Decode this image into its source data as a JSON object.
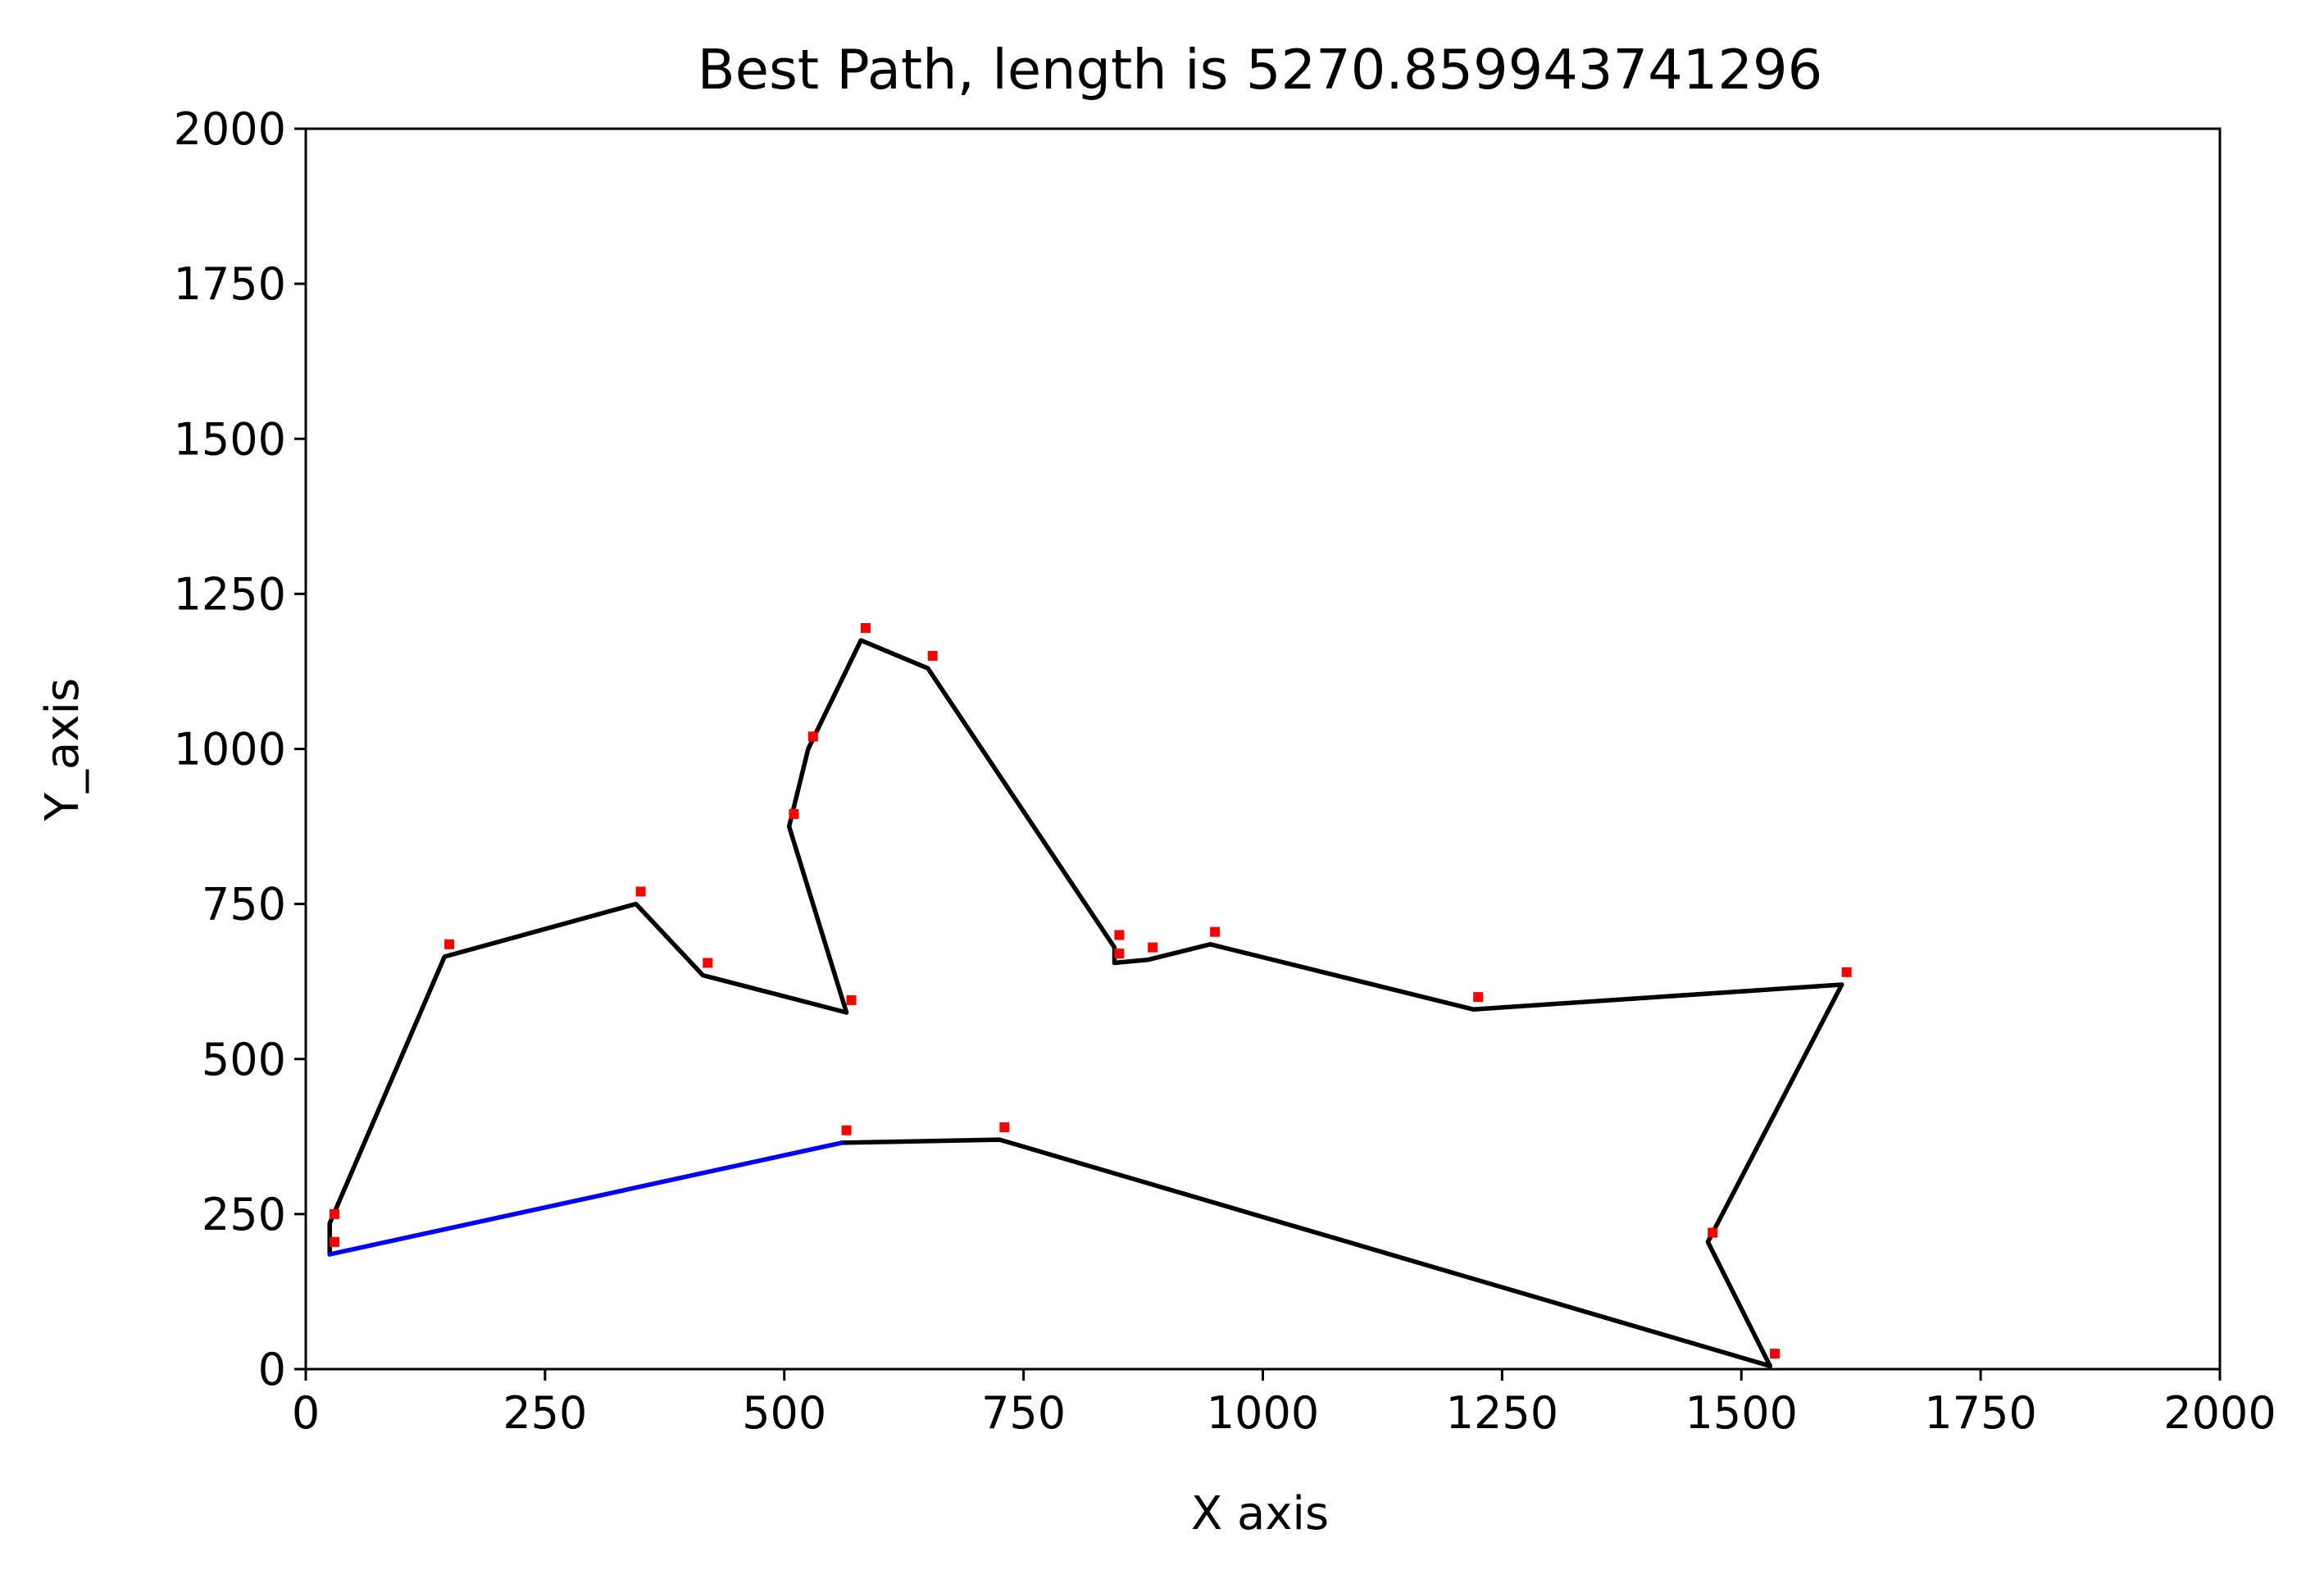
{
  "chart_data": {
    "type": "scatter",
    "title": "Best Path, length is 5270.859943741296",
    "xlabel": "X axis",
    "ylabel": "Y_axis",
    "xlim": [
      0,
      2000
    ],
    "ylim": [
      0,
      2000
    ],
    "xticks": [
      0,
      250,
      500,
      750,
      1000,
      1250,
      1500,
      1750,
      2000
    ],
    "yticks": [
      0,
      250,
      500,
      750,
      1000,
      1250,
      1500,
      1750,
      2000
    ],
    "xtick_labels": [
      "0",
      "250",
      "500",
      "750",
      "1000",
      "1250",
      "1500",
      "1750",
      "2000"
    ],
    "ytick_labels": [
      "0",
      "250",
      "500",
      "750",
      "1000",
      "1250",
      "1500",
      "1750",
      "2000"
    ],
    "grid": false,
    "colors": {
      "cities": "#ff0000",
      "path": "#000000",
      "closing_segment": "#0000ff"
    },
    "cities": [
      {
        "x": 30,
        "y": 250
      },
      {
        "x": 30,
        "y": 205
      },
      {
        "x": 150,
        "y": 685
      },
      {
        "x": 350,
        "y": 770
      },
      {
        "x": 420,
        "y": 655
      },
      {
        "x": 570,
        "y": 595
      },
      {
        "x": 510,
        "y": 895
      },
      {
        "x": 530,
        "y": 1020
      },
      {
        "x": 585,
        "y": 1195
      },
      {
        "x": 655,
        "y": 1150
      },
      {
        "x": 850,
        "y": 700
      },
      {
        "x": 850,
        "y": 670
      },
      {
        "x": 885,
        "y": 680
      },
      {
        "x": 950,
        "y": 705
      },
      {
        "x": 1225,
        "y": 600
      },
      {
        "x": 1610,
        "y": 640
      },
      {
        "x": 1470,
        "y": 220
      },
      {
        "x": 1535,
        "y": 25
      },
      {
        "x": 730,
        "y": 390
      },
      {
        "x": 565,
        "y": 385
      }
    ],
    "series": [
      {
        "type": "line",
        "color": "#000000",
        "x": [
          25,
          25,
          145,
          345,
          415,
          565,
          505,
          525,
          580,
          650,
          845,
          845,
          880,
          945,
          1220,
          1605,
          1465,
          1530,
          725,
          560
        ],
        "y": [
          185,
          235,
          665,
          750,
          635,
          575,
          875,
          1000,
          1175,
          1130,
          680,
          655,
          660,
          685,
          580,
          620,
          205,
          5,
          370,
          365
        ]
      },
      {
        "type": "line",
        "color": "#0000ff",
        "x": [
          560,
          25
        ],
        "y": [
          365,
          185
        ]
      }
    ]
  }
}
